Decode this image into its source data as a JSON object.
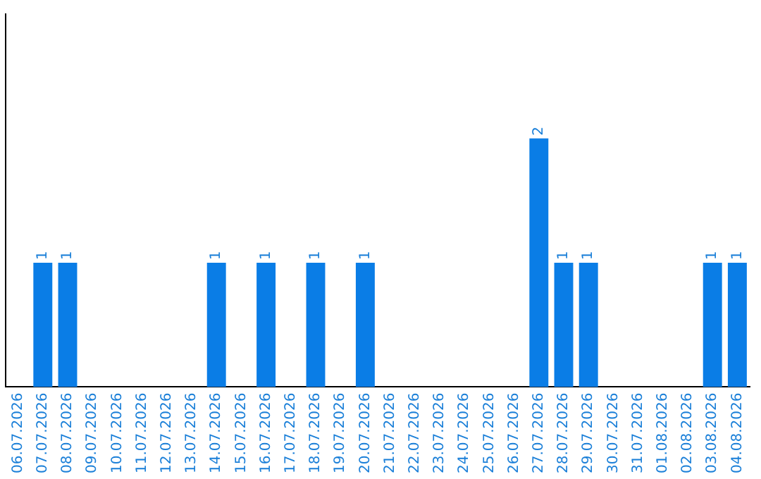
{
  "chart_data": {
    "type": "bar",
    "categories": [
      "06.07.2026",
      "07.07.2026",
      "08.07.2026",
      "09.07.2026",
      "10.07.2026",
      "11.07.2026",
      "12.07.2026",
      "13.07.2026",
      "14.07.2026",
      "15.07.2026",
      "16.07.2026",
      "17.07.2026",
      "18.07.2026",
      "19.07.2026",
      "20.07.2026",
      "21.07.2026",
      "22.07.2026",
      "23.07.2026",
      "24.07.2026",
      "25.07.2026",
      "26.07.2026",
      "27.07.2026",
      "28.07.2026",
      "29.07.2026",
      "30.07.2026",
      "31.07.2026",
      "01.08.2026",
      "02.08.2026",
      "03.08.2026",
      "04.08.2026"
    ],
    "values": [
      0,
      1,
      1,
      0,
      0,
      0,
      0,
      0,
      1,
      0,
      1,
      0,
      1,
      0,
      1,
      0,
      0,
      0,
      0,
      0,
      0,
      2,
      1,
      1,
      0,
      0,
      0,
      0,
      1,
      1
    ],
    "value_labels": [
      null,
      "1",
      "1",
      null,
      null,
      null,
      null,
      null,
      "1",
      null,
      "1",
      null,
      "1",
      null,
      "1",
      null,
      null,
      null,
      null,
      null,
      null,
      "2",
      "1",
      "1",
      null,
      null,
      null,
      null,
      "1",
      "1"
    ],
    "color": "#0a7de6",
    "grid": false,
    "legend": false
  }
}
